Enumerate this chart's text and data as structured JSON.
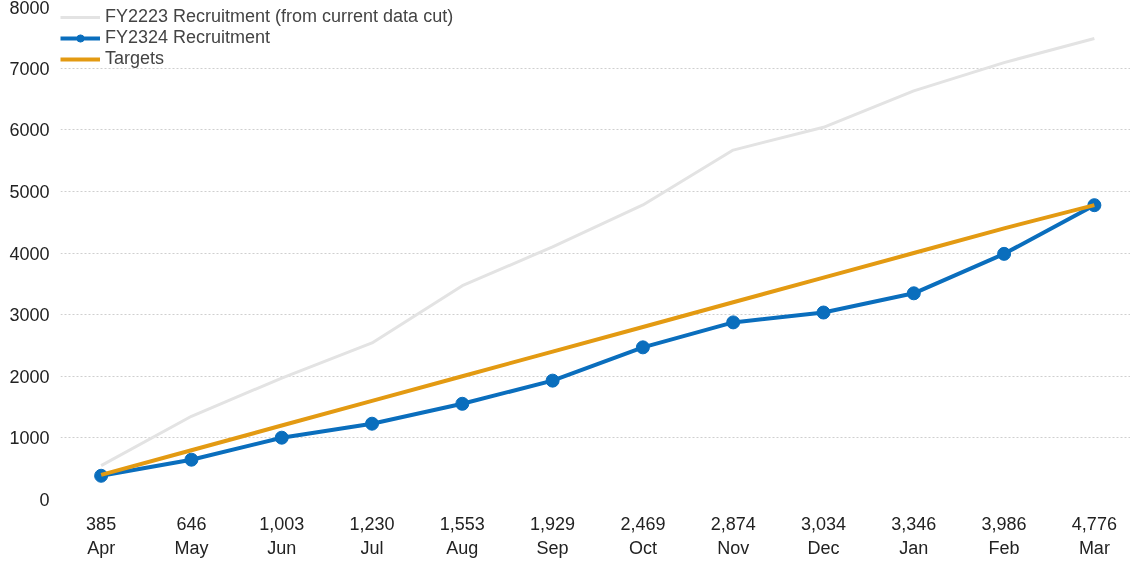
{
  "chart_data": {
    "type": "line",
    "categories": [
      "Apr",
      "May",
      "Jun",
      "Jul",
      "Aug",
      "Sep",
      "Oct",
      "Nov",
      "Dec",
      "Jan",
      "Feb",
      "Mar"
    ],
    "series": [
      {
        "name": "FY2223 Recruitment (from current data cut)",
        "color": "#e3e3e3",
        "marker": "none",
        "values": [
          550,
          1350,
          1970,
          2540,
          3470,
          4100,
          4780,
          5670,
          6040,
          6630,
          7090,
          7480
        ]
      },
      {
        "name": "FY2324 Recruitment",
        "color": "#0a6ebd",
        "marker": "circle",
        "values": [
          385,
          646,
          1003,
          1230,
          1553,
          1929,
          2469,
          2874,
          3034,
          3346,
          3986,
          4776
        ],
        "value_labels": [
          "385",
          "646",
          "1,003",
          "1,230",
          "1,553",
          "1,929",
          "2,469",
          "2,874",
          "3,034",
          "3,346",
          "3,986",
          "4,776"
        ]
      },
      {
        "name": "Targets",
        "color": "#e39a12",
        "marker": "none",
        "values": [
          400,
          800,
          1200,
          1600,
          2000,
          2400,
          2800,
          3200,
          3600,
          4000,
          4400,
          4776
        ]
      }
    ],
    "ylim": [
      0,
      8000
    ],
    "yticks": [
      0,
      1000,
      2000,
      3000,
      4000,
      5000,
      6000,
      7000,
      8000
    ],
    "grid": "y",
    "legend": "top left",
    "line_style": "solid"
  }
}
